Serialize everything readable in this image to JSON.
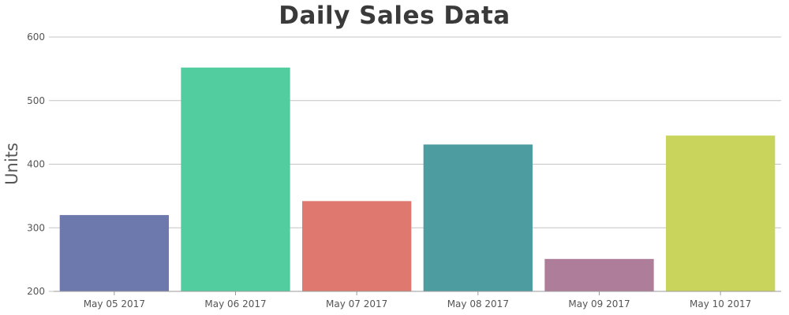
{
  "chart_data": {
    "type": "bar",
    "title": "Daily Sales Data",
    "ylabel": "Units",
    "xlabel": "",
    "categories": [
      "May 05 2017",
      "May 06 2017",
      "May 07 2017",
      "May 08 2017",
      "May 09 2017",
      "May 10 2017"
    ],
    "values": [
      320,
      552,
      342,
      431,
      251,
      445
    ],
    "colors": [
      "#6d78ad",
      "#51cda0",
      "#df7970",
      "#4c9ca0",
      "#ae7d99",
      "#c9d45c"
    ],
    "ylim": [
      200,
      600
    ],
    "yticks": [
      "200",
      "300",
      "400",
      "500",
      "600"
    ],
    "grid": true,
    "legend": "none"
  }
}
